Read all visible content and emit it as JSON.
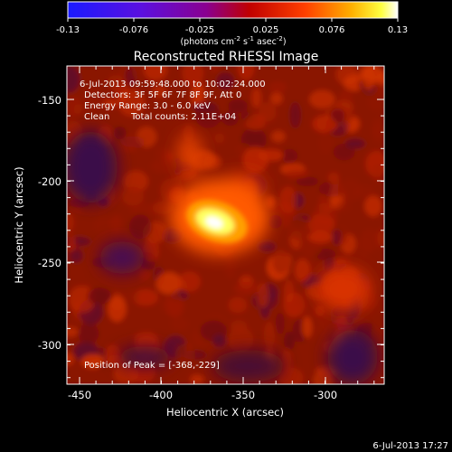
{
  "colorbar": {
    "tick_labels": [
      "-0.13",
      "-0.076",
      "-0.025",
      "0.025",
      "0.076",
      "0.13"
    ],
    "unit_parts": {
      "a": "(photons cm",
      "b": "-2",
      "c": " s",
      "d": "-1",
      "e": " asec",
      "f": "-2",
      "g": ")"
    },
    "colors": {
      "low": "#1a1aff",
      "mid_low": "#8a00c8",
      "mid": "#ff2000",
      "high": "#ffff00",
      "top": "#ffffff"
    }
  },
  "chart_data": {
    "type": "heatmap",
    "title": "Reconstructed RHESSI Image",
    "xlabel": "Heliocentric X (arcsec)",
    "ylabel": "Heliocentric Y (arcsec)",
    "x_ticks": [
      "-450",
      "-400",
      "-350",
      "-300"
    ],
    "y_ticks": [
      "-150",
      "-200",
      "-250",
      "-300"
    ],
    "xlim": [
      -458,
      -265
    ],
    "ylim": [
      -322,
      -128
    ],
    "annotations": {
      "time_range": "6-Jul-2013 09:59:48.000 to 10:02:24.000",
      "detectors": "Detectors: 3F 5F 6F 7F 8F 9F, Att 0",
      "energy": "Energy Range: 3.0 - 6.0 keV",
      "method": "Clean",
      "counts": "Total counts: 2.11E+04",
      "peak": "Position of Peak = [-368,-229]"
    },
    "peak": {
      "x": -368,
      "y": -229,
      "value": 0.13
    },
    "value_range": [
      -0.13,
      0.13
    ]
  },
  "footer": {
    "date": "6-Jul-2013 17:27"
  }
}
